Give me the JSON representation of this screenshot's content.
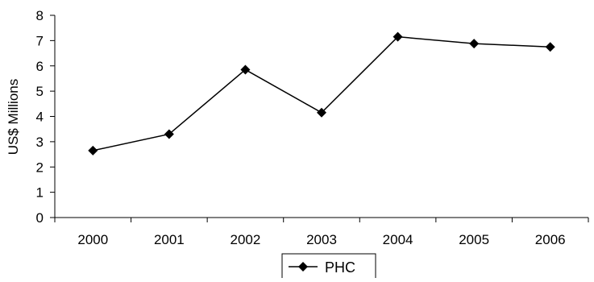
{
  "chart_data": {
    "type": "line",
    "title": "",
    "xlabel": "",
    "ylabel": "US$ Millions",
    "categories": [
      "2000",
      "2001",
      "2002",
      "2003",
      "2004",
      "2005",
      "2006"
    ],
    "series": [
      {
        "name": "PHC",
        "values": [
          2.65,
          3.3,
          5.85,
          4.15,
          7.15,
          6.88,
          6.75
        ],
        "color": "#000000",
        "marker": "diamond"
      }
    ],
    "ylim": [
      0,
      8
    ],
    "yticks": [
      "0",
      "1",
      "2",
      "3",
      "4",
      "5",
      "6",
      "7",
      "8"
    ],
    "grid": false,
    "legend": {
      "position": "bottom-center",
      "entries": [
        "PHC"
      ]
    }
  }
}
